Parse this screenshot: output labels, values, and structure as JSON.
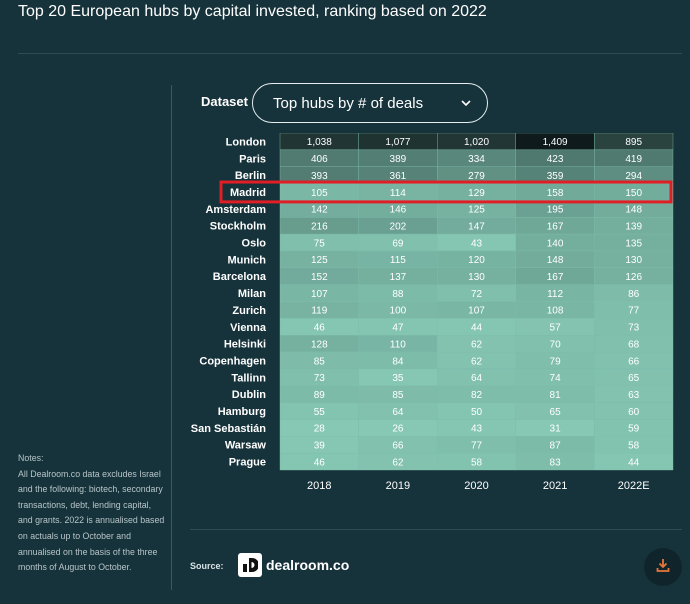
{
  "header": {
    "title": "Top 20 European hubs by capital invested, ranking based on 2022"
  },
  "controls": {
    "dataset_label": "Dataset",
    "dataset_value": "Top hubs by # of deals"
  },
  "chart_data": {
    "type": "table",
    "title": "Top 20 European hubs by capital invested, ranking based on 2022",
    "columns": [
      "2018",
      "2019",
      "2020",
      "2021",
      "2022E"
    ],
    "rows": [
      "London",
      "Paris",
      "Berlin",
      "Madrid",
      "Amsterdam",
      "Stockholm",
      "Oslo",
      "Munich",
      "Barcelona",
      "Milan",
      "Zurich",
      "Vienna",
      "Helsinki",
      "Copenhagen",
      "Tallinn",
      "Dublin",
      "Hamburg",
      "San Sebastián",
      "Warsaw",
      "Prague"
    ],
    "values": [
      [
        "1,038",
        "1,077",
        "1,020",
        "1,409",
        "895"
      ],
      [
        "406",
        "389",
        "334",
        "423",
        "419"
      ],
      [
        "393",
        "361",
        "279",
        "359",
        "294"
      ],
      [
        "105",
        "114",
        "129",
        "158",
        "150"
      ],
      [
        "142",
        "146",
        "125",
        "195",
        "148"
      ],
      [
        "216",
        "202",
        "147",
        "167",
        "139"
      ],
      [
        "75",
        "69",
        "43",
        "140",
        "135"
      ],
      [
        "125",
        "115",
        "120",
        "148",
        "130"
      ],
      [
        "152",
        "137",
        "130",
        "167",
        "126"
      ],
      [
        "107",
        "88",
        "72",
        "112",
        "86"
      ],
      [
        "119",
        "100",
        "107",
        "108",
        "77"
      ],
      [
        "46",
        "47",
        "44",
        "57",
        "73"
      ],
      [
        "128",
        "110",
        "62",
        "70",
        "68"
      ],
      [
        "85",
        "84",
        "62",
        "79",
        "66"
      ],
      [
        "73",
        "35",
        "64",
        "74",
        "65"
      ],
      [
        "89",
        "85",
        "82",
        "81",
        "63"
      ],
      [
        "55",
        "64",
        "50",
        "65",
        "60"
      ],
      [
        "28",
        "26",
        "43",
        "31",
        "59"
      ],
      [
        "39",
        "66",
        "77",
        "87",
        "58"
      ],
      [
        "46",
        "62",
        "58",
        "83",
        "44"
      ]
    ],
    "highlighted_row": "Madrid",
    "highlight_color": "#e01e26",
    "color_scale": {
      "low": "#86c8b4",
      "high": "#0e1a1b"
    }
  },
  "notes": {
    "heading": "Notes:",
    "body": "All Dealroom.co data excludes Israel and the following: biotech, secondary transactions, debt, lending capital, and grants. 2022 is annualised based on actuals up to October and annualised on the basis of the three months of August to October."
  },
  "footer": {
    "source_label": "Source:",
    "brand_name": "dealroom.co",
    "logo_glyph": "d",
    "download_icon": "download-icon"
  }
}
